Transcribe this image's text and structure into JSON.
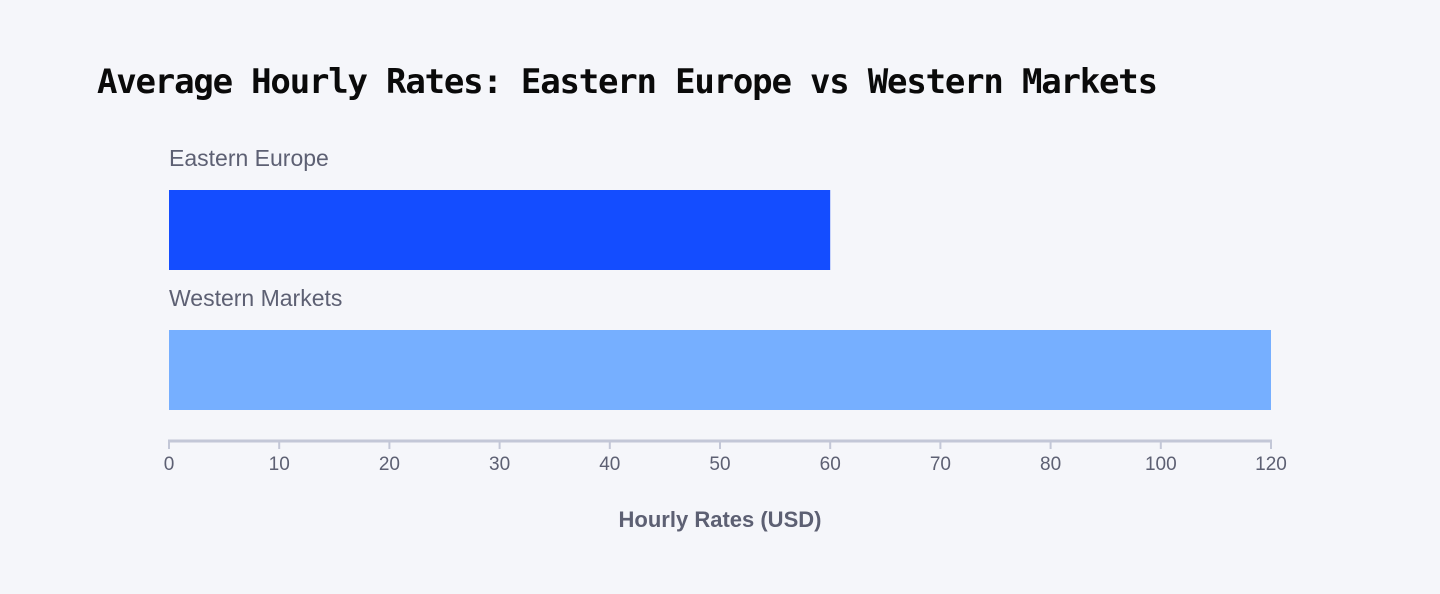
{
  "chart_data": {
    "type": "bar",
    "orientation": "horizontal",
    "title": "Average Hourly Rates: Eastern Europe vs Western Markets",
    "xlabel": "Hourly Rates (USD)",
    "ylabel": "",
    "categories": [
      "Eastern Europe",
      "Western Markets"
    ],
    "values": [
      60,
      120
    ],
    "bar_colors": [
      "#144dff",
      "#76afff"
    ],
    "x_ticks": [
      "0",
      "10",
      "20",
      "30",
      "40",
      "50",
      "60",
      "70",
      "80",
      "100",
      "120"
    ],
    "xlim": [
      0,
      120
    ],
    "grid": false,
    "legend": "none"
  },
  "colors": {
    "background": "#f5f6fa",
    "axis": "#c3c7d7",
    "text": "#5d6073"
  }
}
